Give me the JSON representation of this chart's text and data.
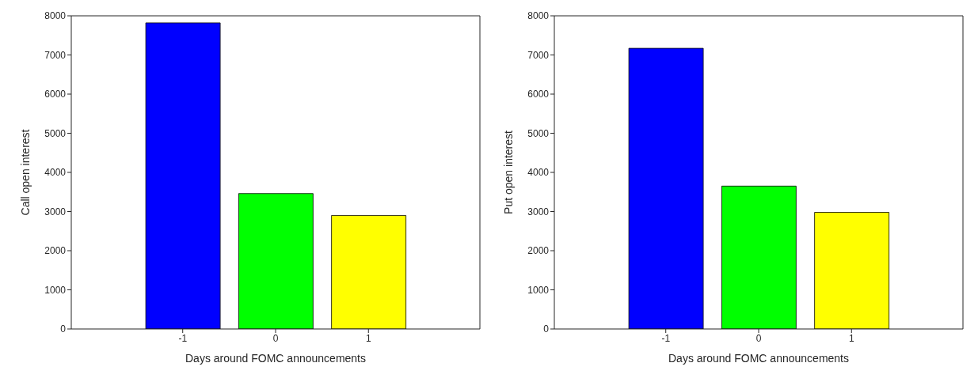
{
  "chart_data": [
    {
      "type": "bar",
      "xlabel": "Days around FOMC announcements",
      "ylabel": "Call open interest",
      "x": [
        -1,
        0,
        1
      ],
      "values": [
        7820,
        3460,
        2900
      ],
      "colors": [
        "#0000ff",
        "#00ff00",
        "#ffff00"
      ],
      "xlim": [
        -2.2,
        2.2
      ],
      "xticks": [
        -1,
        0,
        1
      ],
      "ylim": [
        0,
        8000
      ],
      "yticks": [
        0,
        1000,
        2000,
        3000,
        4000,
        5000,
        6000,
        7000,
        8000
      ],
      "grid": false,
      "legend": false
    },
    {
      "type": "bar",
      "xlabel": "Days around FOMC announcements",
      "ylabel": "Put open interest",
      "x": [
        -1,
        0,
        1
      ],
      "values": [
        7170,
        3650,
        2980
      ],
      "colors": [
        "#0000ff",
        "#00ff00",
        "#ffff00"
      ],
      "xlim": [
        -2.2,
        2.2
      ],
      "xticks": [
        -1,
        0,
        1
      ],
      "ylim": [
        0,
        8000
      ],
      "yticks": [
        0,
        1000,
        2000,
        3000,
        4000,
        5000,
        6000,
        7000,
        8000
      ],
      "grid": false,
      "legend": false
    }
  ]
}
